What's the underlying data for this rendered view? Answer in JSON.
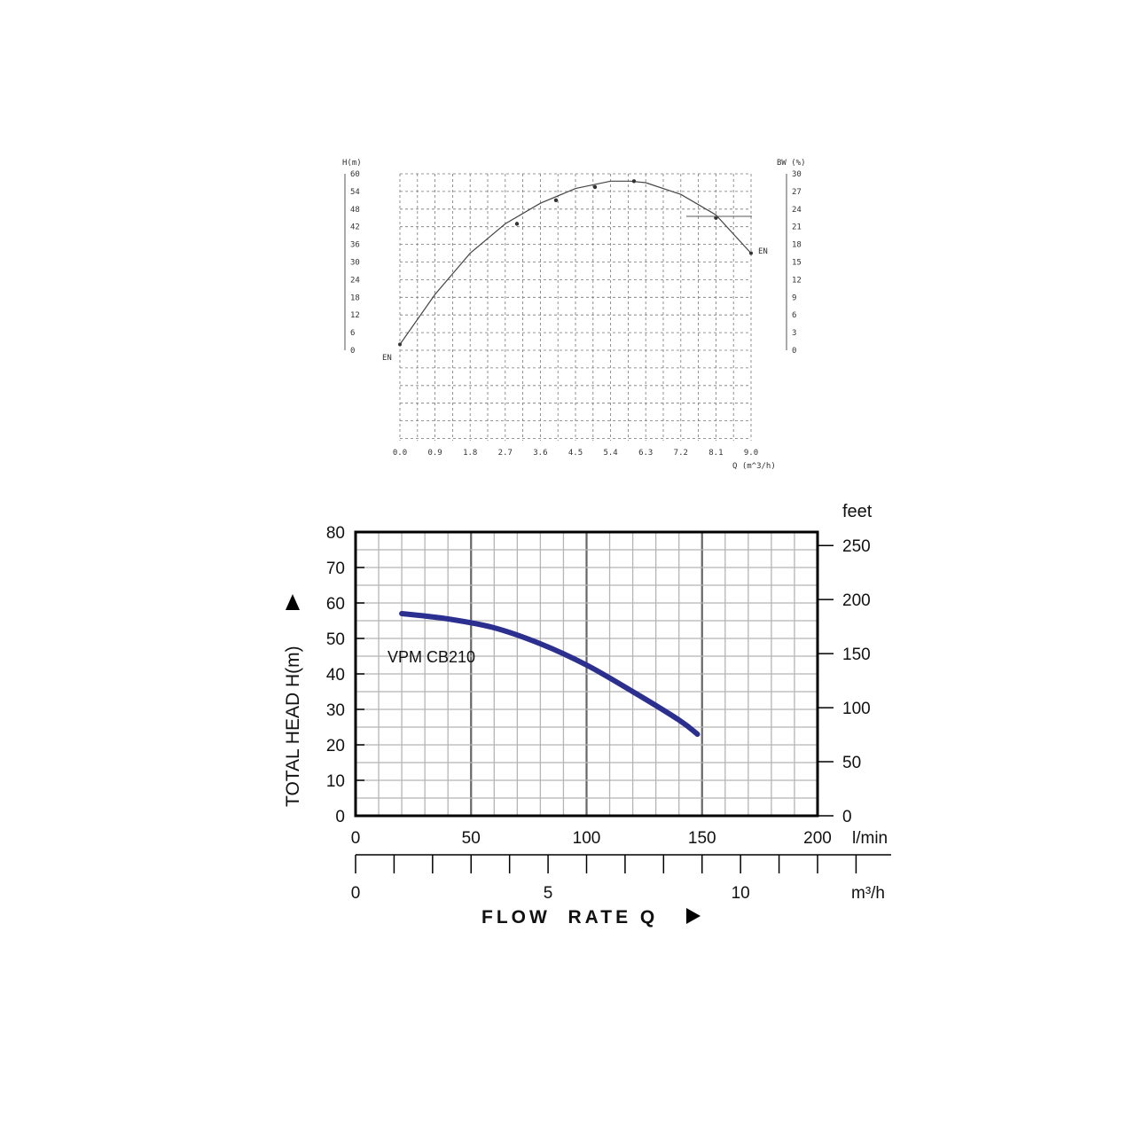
{
  "chart_data": [
    {
      "type": "line",
      "title": "",
      "left_axis": {
        "label": "H(m)",
        "ticks": [
          "0",
          "6",
          "12",
          "18",
          "24",
          "30",
          "36",
          "42",
          "48",
          "54",
          "60"
        ],
        "ylim": [
          0,
          60
        ]
      },
      "right_axis": {
        "label": "BW (%)",
        "ticks": [
          "0",
          "3",
          "6",
          "9",
          "12",
          "15",
          "18",
          "21",
          "24",
          "27",
          "30"
        ],
        "ylim": [
          0,
          30
        ]
      },
      "x_axis": {
        "label": "Q (m^3/h)",
        "ticks": [
          "0.0",
          "0.9",
          "1.8",
          "2.7",
          "3.6",
          "4.5",
          "5.4",
          "6.3",
          "7.2",
          "8.1",
          "9.0"
        ],
        "xlim": [
          0,
          9
        ]
      },
      "series": [
        {
          "marker_start": "EN",
          "marker_end": "EN",
          "x": [
            0.0,
            0.9,
            1.8,
            2.7,
            3.6,
            4.5,
            5.4,
            5.9,
            6.3,
            7.2,
            8.1,
            9.0
          ],
          "y": [
            2,
            19,
            33,
            43,
            50,
            55,
            57.5,
            57.5,
            57,
            53,
            46,
            33
          ]
        }
      ],
      "marks": [
        {
          "x": 3.0,
          "y": 43
        },
        {
          "x": 4.0,
          "y": 51
        },
        {
          "x": 5.0,
          "y": 55.5
        },
        {
          "x": 6.0,
          "y": 57.5
        },
        {
          "x": 8.1,
          "y": 45
        }
      ],
      "grid": true
    },
    {
      "type": "line",
      "title": "",
      "ylabel": "TOTAL HEAD H(m)",
      "yticks": [
        "0",
        "10",
        "20",
        "30",
        "40",
        "50",
        "60",
        "70",
        "80"
      ],
      "ylim": [
        0,
        80
      ],
      "y2label": "feet",
      "y2ticks": [
        "0",
        "50",
        "100",
        "150",
        "200",
        "250"
      ],
      "xlabel": "FLOW  RATE Q",
      "xticks_lmin": [
        "0",
        "50",
        "100",
        "150",
        "200"
      ],
      "xunit_lmin": "l/min",
      "xlim": [
        0,
        200
      ],
      "xticks_m3h": [
        "0",
        "5",
        "10"
      ],
      "xunit_m3h": "m³/h",
      "series": [
        {
          "name": "VPM CB210",
          "color": "#2b2f8f",
          "x": [
            20,
            40,
            60,
            80,
            100,
            120,
            140,
            148
          ],
          "y": [
            57,
            55.5,
            53,
            48.5,
            42.5,
            35,
            27,
            23
          ]
        }
      ],
      "grid": true
    }
  ]
}
